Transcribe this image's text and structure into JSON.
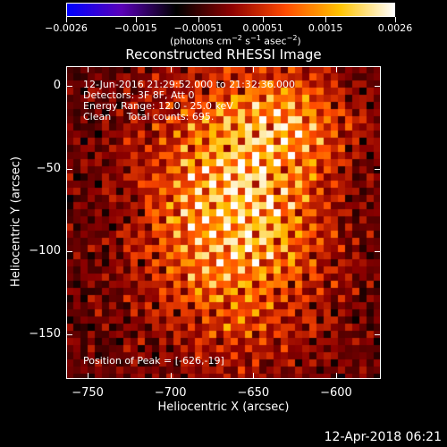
{
  "chart_data": {
    "type": "heatmap",
    "title": "Reconstructed RHESSI Image",
    "xlabel": "Heliocentric X (arcsec)",
    "ylabel": "Heliocentric Y (arcsec)",
    "xlim": [
      -763,
      -573
    ],
    "ylim": [
      -177,
      12
    ],
    "x_ticks": [
      "−750",
      "−700",
      "−650",
      "−600"
    ],
    "x_tick_values": [
      -750,
      -700,
      -650,
      -600
    ],
    "y_ticks": [
      "0",
      "−50",
      "−100",
      "−150"
    ],
    "y_tick_values": [
      0,
      -50,
      -100,
      -150
    ],
    "colorbar": {
      "ticks": [
        "−0.0026",
        "−0.0015",
        "−0.00051",
        "0.00051",
        "0.0015",
        "0.0026"
      ],
      "tick_values": [
        -0.0026,
        -0.0015,
        -0.00051,
        0.00051,
        0.0015,
        0.0026
      ],
      "range": [
        -0.0026,
        0.0026
      ],
      "units_pre": "(photons cm",
      "units_exp1": "−2",
      "units_mid1": " s",
      "units_exp2": "−1",
      "units_mid2": " asec",
      "units_exp3": "−2",
      "units_post": ")",
      "colormap": [
        "#0000ff",
        "#5b00b8",
        "#000000",
        "#8c0000",
        "#ff4a00",
        "#ffc400",
        "#ffffff"
      ]
    },
    "annotations": {
      "time_range": "12-Jun-2016 21:29:52.000 to 21:32:36.000",
      "detectors": "Detectors: 3F 8F, Att 0",
      "energy_range": "Energy Range: 12.0 - 25.0 keV",
      "clean": "Clean     Total counts: 695.",
      "peak": "Position of Peak = [-626,-19]"
    },
    "peak_position": [
      -626,
      -19
    ]
  },
  "timestamp": "12-Apr-2018 06:21"
}
